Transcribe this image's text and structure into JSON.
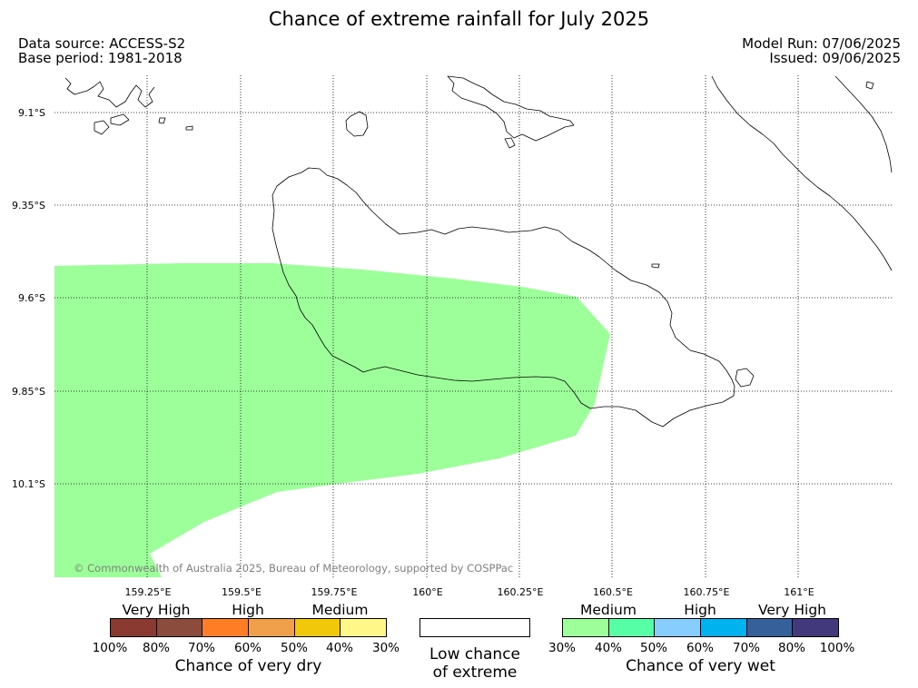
{
  "header": {
    "title": "Chance of extreme rainfall for July 2025",
    "data_source": "Data source: ACCESS-S2",
    "base_period": "Base period: 1981-2018",
    "model_run": "Model Run: 07/06/2025",
    "issued": "Issued: 09/06/2025"
  },
  "map": {
    "lat_labels": [
      "9.1°S",
      "9.35°S",
      "9.6°S",
      "9.85°S",
      "10.1°S"
    ],
    "lon_labels": [
      "159.25°E",
      "159.5°E",
      "159.75°E",
      "160°E",
      "160.25°E",
      "160.5°E",
      "160.75°E",
      "161°E"
    ],
    "shaded_category": "Medium chance of very wet (30%–40%)",
    "shaded_color": "#9cff99",
    "credit": "© Commonwealth of Australia 2025, Bureau of Meteorology, supported by COSPPac"
  },
  "legend": {
    "dry": {
      "categories": [
        "Very High",
        "High",
        "Medium"
      ],
      "colors": [
        "#8b3a32",
        "#8b4c3e",
        "#ff7d25",
        "#f0a04a",
        "#f2c80a",
        "#fff888"
      ],
      "ticks": [
        "100%",
        "80%",
        "70%",
        "60%",
        "50%",
        "40%",
        "30%"
      ],
      "caption": "Chance of very dry"
    },
    "low": {
      "caption_line1": "Low chance",
      "caption_line2": "of extreme",
      "color": "#ffffff"
    },
    "wet": {
      "categories": [
        "Medium",
        "High",
        "Very High"
      ],
      "colors": [
        "#9cff99",
        "#56ffa6",
        "#87ceff",
        "#00b2ee",
        "#36609a",
        "#41397c"
      ],
      "ticks": [
        "30%",
        "40%",
        "50%",
        "60%",
        "70%",
        "80%",
        "100%"
      ],
      "caption": "Chance of very wet"
    }
  }
}
